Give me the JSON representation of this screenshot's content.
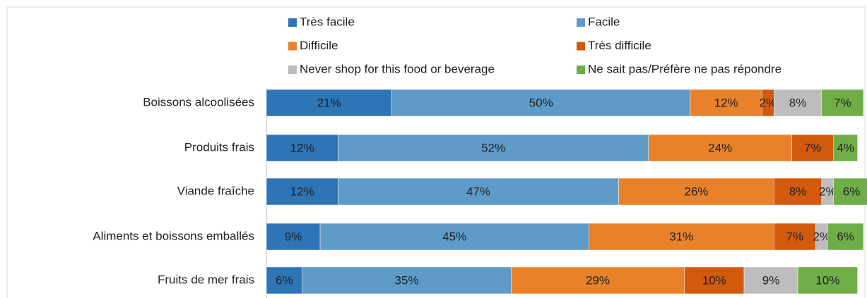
{
  "chart_data": {
    "type": "stacked-bar-horizontal",
    "categories": [
      "Boissons alcoolisées",
      "Produits frais",
      "Viande fraîche",
      "Aliments et boissons emballés",
      "Fruits de mer frais"
    ],
    "xlim": [
      0,
      100
    ],
    "series": [
      {
        "name": "Très facile",
        "color": "#2e75b6",
        "values": [
          21,
          12,
          12,
          9,
          6
        ],
        "value_labels": [
          "21%",
          "12%",
          "12%",
          "9%",
          "6%"
        ]
      },
      {
        "name": "Facile",
        "color": "#5e9bc9",
        "values": [
          50,
          52,
          47,
          45,
          35
        ],
        "value_labels": [
          "50%",
          "52%",
          "47%",
          "45%",
          "35%"
        ]
      },
      {
        "name": "Difficile",
        "color": "#e8812a",
        "values": [
          12,
          24,
          26,
          31,
          29
        ],
        "value_labels": [
          "12%",
          "24%",
          "26%",
          "31%",
          "29%"
        ]
      },
      {
        "name": "Très difficile",
        "color": "#d35a0c",
        "values": [
          2,
          7,
          8,
          7,
          10
        ],
        "value_labels": [
          "2%",
          "7%",
          "8%",
          "7%",
          "10%"
        ]
      },
      {
        "name": "Never shop for this food or beverage",
        "color": "#bdbdbd",
        "values": [
          8,
          0,
          2,
          2,
          9
        ],
        "value_labels": [
          "8%",
          null,
          "2%",
          "2%",
          "9%"
        ]
      },
      {
        "name": "Ne sait pas/Préfère ne pas répondre",
        "color": "#6fae47",
        "values": [
          7,
          4,
          6,
          6,
          10
        ],
        "value_labels": [
          "7%",
          "4%",
          "6%",
          "6%",
          "10%"
        ]
      }
    ]
  }
}
